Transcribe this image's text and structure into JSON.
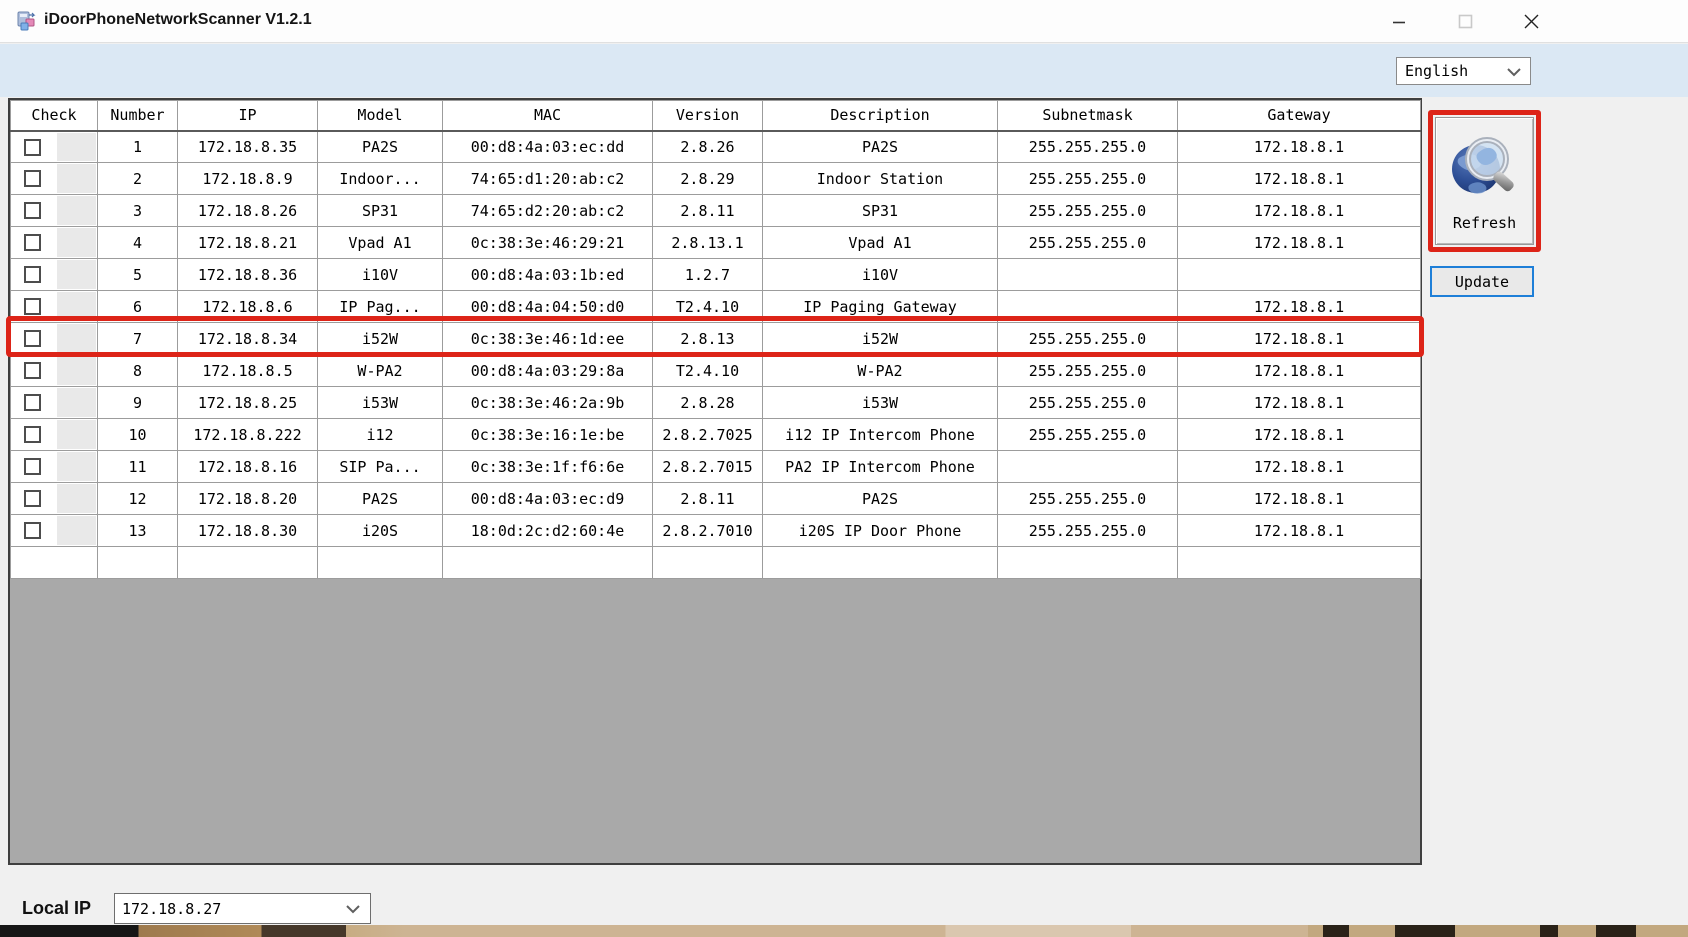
{
  "window": {
    "title": "iDoorPhoneNetworkScanner V1.2.1"
  },
  "toolbar": {
    "language_selected": "English"
  },
  "table": {
    "headers": [
      "Check",
      "Number",
      "IP",
      "Model",
      "MAC",
      "Version",
      "Description",
      "Subnetmask",
      "Gateway"
    ],
    "rows": [
      {
        "checked": false,
        "number": "1",
        "ip": "172.18.8.35",
        "model": "PA2S",
        "mac": "00:d8:4a:03:ec:dd",
        "version": "2.8.26",
        "description": "PA2S",
        "subnetmask": "255.255.255.0",
        "gateway": "172.18.8.1",
        "highlighted": false
      },
      {
        "checked": false,
        "number": "2",
        "ip": "172.18.8.9",
        "model": "Indoor...",
        "mac": "74:65:d1:20:ab:c2",
        "version": "2.8.29",
        "description": "Indoor Station",
        "subnetmask": "255.255.255.0",
        "gateway": "172.18.8.1",
        "highlighted": false
      },
      {
        "checked": false,
        "number": "3",
        "ip": "172.18.8.26",
        "model": "SP31",
        "mac": "74:65:d2:20:ab:c2",
        "version": "2.8.11",
        "description": "SP31",
        "subnetmask": "255.255.255.0",
        "gateway": "172.18.8.1",
        "highlighted": false
      },
      {
        "checked": false,
        "number": "4",
        "ip": "172.18.8.21",
        "model": "Vpad A1",
        "mac": "0c:38:3e:46:29:21",
        "version": "2.8.13.1",
        "description": "Vpad A1",
        "subnetmask": "255.255.255.0",
        "gateway": "172.18.8.1",
        "highlighted": false
      },
      {
        "checked": false,
        "number": "5",
        "ip": "172.18.8.36",
        "model": "i10V",
        "mac": "00:d8:4a:03:1b:ed",
        "version": "1.2.7",
        "description": "i10V",
        "subnetmask": "",
        "gateway": "",
        "highlighted": false
      },
      {
        "checked": false,
        "number": "6",
        "ip": "172.18.8.6",
        "model": "IP Pag...",
        "mac": "00:d8:4a:04:50:d0",
        "version": "T2.4.10",
        "description": "IP Paging Gateway",
        "subnetmask": "",
        "gateway": "172.18.8.1",
        "highlighted": false
      },
      {
        "checked": false,
        "number": "7",
        "ip": "172.18.8.34",
        "model": "i52W",
        "mac": "0c:38:3e:46:1d:ee",
        "version": "2.8.13",
        "description": "i52W",
        "subnetmask": "255.255.255.0",
        "gateway": "172.18.8.1",
        "highlighted": true
      },
      {
        "checked": false,
        "number": "8",
        "ip": "172.18.8.5",
        "model": "W-PA2",
        "mac": "00:d8:4a:03:29:8a",
        "version": "T2.4.10",
        "description": "W-PA2",
        "subnetmask": "255.255.255.0",
        "gateway": "172.18.8.1",
        "highlighted": false
      },
      {
        "checked": false,
        "number": "9",
        "ip": "172.18.8.25",
        "model": "i53W",
        "mac": "0c:38:3e:46:2a:9b",
        "version": "2.8.28",
        "description": "i53W",
        "subnetmask": "255.255.255.0",
        "gateway": "172.18.8.1",
        "highlighted": false
      },
      {
        "checked": false,
        "number": "10",
        "ip": "172.18.8.222",
        "model": "i12",
        "mac": "0c:38:3e:16:1e:be",
        "version": "2.8.2.7025",
        "description": "i12 IP Intercom Phone",
        "subnetmask": "255.255.255.0",
        "gateway": "172.18.8.1",
        "highlighted": false
      },
      {
        "checked": false,
        "number": "11",
        "ip": "172.18.8.16",
        "model": "SIP Pa...",
        "mac": "0c:38:3e:1f:f6:6e",
        "version": "2.8.2.7015",
        "description": "PA2 IP Intercom Phone",
        "subnetmask": "",
        "gateway": "172.18.8.1",
        "highlighted": false
      },
      {
        "checked": false,
        "number": "12",
        "ip": "172.18.8.20",
        "model": "PA2S",
        "mac": "00:d8:4a:03:ec:d9",
        "version": "2.8.11",
        "description": "PA2S",
        "subnetmask": "255.255.255.0",
        "gateway": "172.18.8.1",
        "highlighted": false
      },
      {
        "checked": false,
        "number": "13",
        "ip": "172.18.8.30",
        "model": "i20S",
        "mac": "18:0d:2c:d2:60:4e",
        "version": "2.8.2.7010",
        "description": "i20S IP Door Phone",
        "subnetmask": "255.255.255.0",
        "gateway": "172.18.8.1",
        "highlighted": false
      }
    ]
  },
  "actions": {
    "refresh_label": "Refresh",
    "update_label": "Update"
  },
  "footer": {
    "local_ip_label": "Local IP",
    "local_ip_value": "172.18.8.27"
  },
  "icons": {
    "refresh": "globe-magnifier-icon",
    "language_dropdown": "chevron-down-icon",
    "local_ip_dropdown": "chevron-down-icon"
  },
  "colors": {
    "highlight_red": "#dd2418",
    "update_border_blue": "#1e7fd8",
    "band_blue": "#dbe8f4",
    "empty_area_gray": "#a9a9a9"
  }
}
